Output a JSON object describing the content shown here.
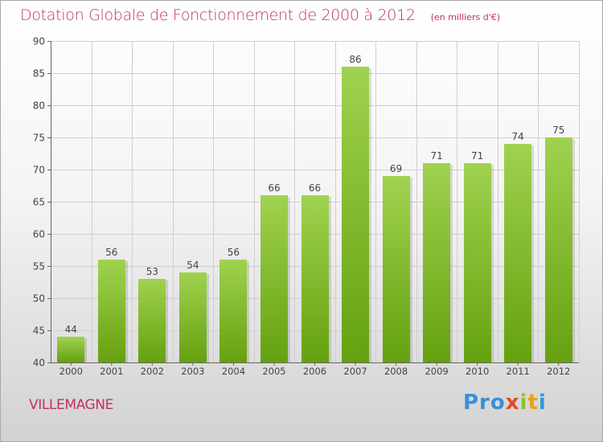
{
  "header": {
    "title": "Dotation Globale de Fonctionnement de 2000 à 2012",
    "unit": "(en milliers d'€)"
  },
  "footer": {
    "place": "VILLEMAGNE",
    "logo": [
      "Pro",
      "x",
      "i",
      "t",
      "i"
    ]
  },
  "colors": {
    "bar_top": "#a0d24f",
    "bar_bottom": "#65a10f",
    "title": "#c0345a",
    "grid": "#cfcfcf"
  },
  "chart_data": {
    "type": "bar",
    "title": "Dotation Globale de Fonctionnement de 2000 à 2012",
    "subtitle": "(en milliers d'€)",
    "xlabel": "",
    "ylabel": "",
    "categories": [
      "2000",
      "2001",
      "2002",
      "2003",
      "2004",
      "2005",
      "2006",
      "2007",
      "2008",
      "2009",
      "2010",
      "2011",
      "2012"
    ],
    "values": [
      44,
      56,
      53,
      54,
      56,
      66,
      66,
      86,
      69,
      71,
      71,
      74,
      75
    ],
    "ylim": [
      40,
      90
    ],
    "yticks": [
      40,
      45,
      50,
      55,
      60,
      65,
      70,
      75,
      80,
      85,
      90
    ],
    "grid": true,
    "legend": "none"
  }
}
